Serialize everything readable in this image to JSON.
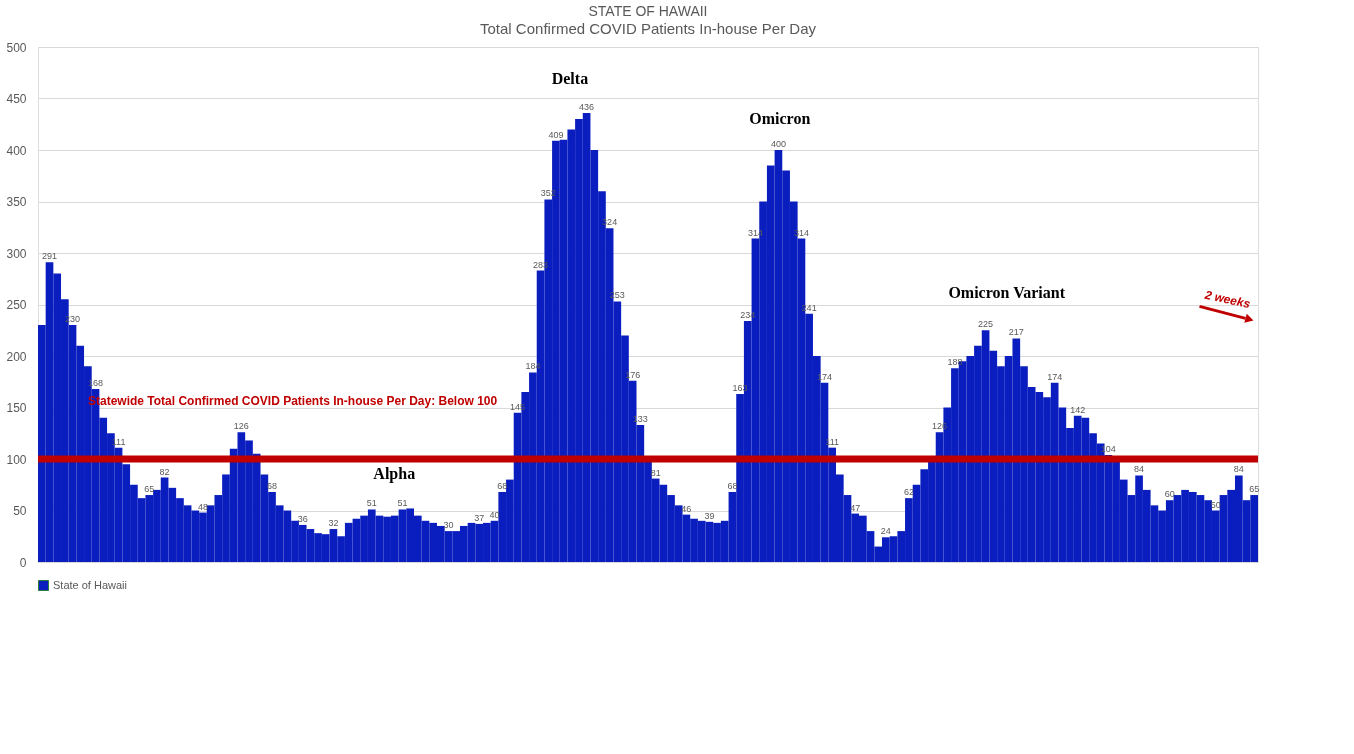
{
  "chart_data": {
    "type": "bar",
    "title": "STATE OF HAWAII",
    "subtitle": "Total Confirmed COVID Patients In-house Per Day",
    "categories": [
      null,
      null,
      null,
      null,
      null,
      null,
      null,
      null,
      null,
      null,
      null,
      null,
      null,
      null,
      null,
      null,
      null,
      null,
      null,
      null,
      null,
      null,
      null,
      null,
      null,
      null,
      null,
      null,
      null,
      null,
      null,
      null,
      null,
      null,
      null,
      null,
      null,
      null,
      null,
      null,
      null,
      null,
      null,
      null,
      null,
      null,
      null,
      null,
      null,
      null,
      null,
      null,
      null,
      null,
      null,
      null,
      null,
      null,
      null,
      null,
      null,
      null,
      null,
      null,
      null,
      null,
      null,
      null,
      null,
      null,
      null,
      null,
      null,
      null,
      null,
      null,
      null,
      null,
      null,
      null,
      null,
      null,
      null,
      null,
      null,
      null,
      null,
      null,
      null,
      null,
      null,
      null,
      null,
      null,
      null,
      null,
      null,
      null,
      null,
      null,
      null,
      null,
      null,
      null,
      null,
      null,
      null,
      null,
      null,
      null,
      null,
      null,
      null,
      null,
      null,
      null,
      null,
      null,
      null,
      null,
      null,
      null,
      null,
      null,
      null,
      null,
      null,
      null,
      null,
      null,
      null,
      null,
      null,
      null,
      null,
      null,
      null,
      null,
      null,
      null,
      null,
      null,
      null,
      null,
      null,
      null,
      null,
      null,
      null,
      null,
      null,
      null,
      null,
      null,
      null,
      null,
      null,
      null,
      null
    ],
    "series": [
      {
        "name": "State of Hawaii",
        "color": "#0a1dbf",
        "values": [
          230,
          291,
          280,
          255,
          230,
          210,
          190,
          168,
          140,
          125,
          111,
          95,
          75,
          62,
          65,
          70,
          82,
          72,
          62,
          55,
          50,
          48,
          55,
          65,
          85,
          110,
          126,
          118,
          105,
          85,
          68,
          55,
          50,
          40,
          36,
          32,
          28,
          27,
          32,
          25,
          38,
          42,
          45,
          51,
          45,
          44,
          45,
          51,
          52,
          45,
          40,
          38,
          35,
          30,
          30,
          35,
          38,
          37,
          38,
          40,
          68,
          80,
          145,
          165,
          184,
          283,
          352,
          409,
          410,
          420,
          430,
          436,
          400,
          360,
          324,
          253,
          220,
          176,
          133,
          100,
          81,
          75,
          65,
          55,
          46,
          42,
          40,
          39,
          38,
          40,
          68,
          163,
          234,
          314,
          350,
          385,
          400,
          380,
          350,
          314,
          241,
          200,
          174,
          111,
          85,
          65,
          47,
          45,
          30,
          15,
          24,
          25,
          30,
          62,
          75,
          90,
          100,
          126,
          150,
          188,
          195,
          200,
          210,
          225,
          205,
          190,
          200,
          217,
          190,
          170,
          165,
          160,
          174,
          150,
          130,
          142,
          140,
          125,
          115,
          104,
          100,
          80,
          65,
          84,
          70,
          55,
          50,
          60,
          65,
          70,
          68,
          65,
          60,
          50,
          65,
          70,
          84,
          60,
          65
        ],
        "value_labels": [
          null,
          "291",
          null,
          null,
          "230",
          null,
          null,
          "168",
          null,
          null,
          "111",
          null,
          null,
          null,
          "65",
          null,
          "82",
          null,
          null,
          null,
          null,
          "48",
          null,
          null,
          null,
          null,
          "126",
          null,
          null,
          null,
          "68",
          null,
          null,
          null,
          "36",
          null,
          null,
          null,
          "32",
          null,
          null,
          null,
          null,
          "51",
          null,
          null,
          null,
          "51",
          null,
          null,
          null,
          null,
          null,
          "30",
          null,
          null,
          null,
          "37",
          null,
          "40",
          "68",
          null,
          "145",
          null,
          "184",
          "283",
          "352",
          "409",
          null,
          null,
          null,
          "436",
          null,
          null,
          "324",
          "253",
          null,
          "176",
          "133",
          null,
          "81",
          null,
          null,
          null,
          "46",
          null,
          null,
          "39",
          null,
          null,
          "68",
          "163",
          "234",
          "314",
          null,
          null,
          "400",
          null,
          null,
          "314",
          "241",
          null,
          "174",
          "111",
          null,
          null,
          "47",
          null,
          null,
          null,
          "24",
          null,
          null,
          "62",
          null,
          null,
          null,
          "126",
          null,
          "188",
          null,
          null,
          null,
          "225",
          null,
          null,
          null,
          "217",
          null,
          null,
          null,
          null,
          "174",
          null,
          null,
          "142",
          null,
          null,
          null,
          "104",
          null,
          null,
          null,
          "84",
          null,
          null,
          null,
          "60",
          null,
          null,
          null,
          null,
          null,
          "50",
          null,
          null,
          "84",
          null,
          "65"
        ]
      }
    ],
    "ylim": [
      0,
      500
    ],
    "yticks": [
      0,
      50,
      100,
      150,
      200,
      250,
      300,
      350,
      400,
      450,
      500
    ],
    "grid": "y",
    "legend": "bottom",
    "tick_labels": "y",
    "ref_lines": [
      {
        "axis": "y",
        "value": 100,
        "label": "Statewide Total Confirmed COVID Patients In-house Per Day:  Below 100",
        "color": "#c00000",
        "line_style": "solid"
      }
    ],
    "annotations": [
      "Delta",
      "Omicron",
      "Alpha",
      "Omicron Variant",
      "2 weeks"
    ]
  }
}
